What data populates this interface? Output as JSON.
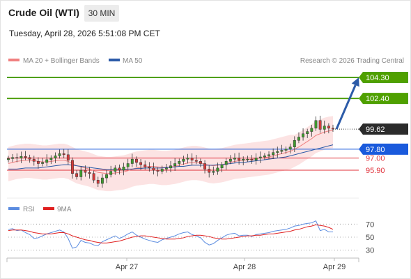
{
  "header": {
    "title": "Crude Oil (WTI)",
    "timeframe": "30 MIN",
    "datetime": "Tuesday, April 28, 2026 5:51:08 PM CET"
  },
  "legend": {
    "ma20_label": "MA 20 + Bollinger Bands",
    "ma50_label": "MA 50",
    "credit": "Research © 2026 Trading Central",
    "rsi_label": "RSI",
    "rsi_ma_label": "9MA"
  },
  "colors": {
    "green": "#4fa000",
    "blue": "#1a5adc",
    "red": "#e0303a",
    "bollinger": "#fbdcdc",
    "ma20": "#f08080",
    "ma50": "#2c5ba8",
    "last_price_bg": "#2b2b2b",
    "arrow": "#2c5ba8",
    "rsi": "#5b8ce0",
    "rsi_ma": "#e02020"
  },
  "chart_data": [
    {
      "type": "candlestick",
      "title": "Crude Oil (WTI)",
      "timeframe": "30 MIN",
      "ylim": [
        93.5,
        105.5
      ],
      "x_ticks": [
        "Apr 27",
        "Apr 28",
        "Apr 29"
      ],
      "last_price": 99.62,
      "levels": [
        {
          "value": 104.3,
          "label": "104.30",
          "kind": "target",
          "color": "#4fa000"
        },
        {
          "value": 102.4,
          "label": "102.40",
          "kind": "target",
          "color": "#4fa000"
        },
        {
          "value": 97.8,
          "label": "97.80",
          "kind": "pivot",
          "color": "#1a5adc"
        },
        {
          "value": 97.0,
          "label": "97.00",
          "kind": "support",
          "color": "#e0303a"
        },
        {
          "value": 95.9,
          "label": "95.90",
          "kind": "support",
          "color": "#e0303a"
        }
      ],
      "arrow": {
        "from": 99.62,
        "to": 104.3,
        "direction": "up"
      },
      "closes": [
        96.95,
        97.05,
        97.0,
        97.15,
        97.05,
        96.9,
        96.7,
        96.5,
        96.6,
        96.85,
        97.0,
        97.2,
        97.4,
        97.3,
        96.8,
        95.6,
        95.3,
        95.9,
        95.7,
        95.6,
        95.0,
        94.7,
        95.2,
        95.5,
        95.8,
        96.1,
        95.9,
        96.2,
        96.5,
        96.9,
        96.6,
        96.4,
        96.2,
        96.1,
        95.9,
        95.8,
        96.0,
        96.1,
        96.3,
        96.5,
        96.7,
        96.9,
        97.0,
        96.8,
        96.7,
        96.5,
        96.0,
        95.7,
        95.8,
        96.1,
        96.4,
        96.7,
        96.9,
        97.0,
        96.8,
        96.9,
        96.9,
        96.8,
        97.0,
        97.1,
        97.2,
        97.3,
        97.5,
        97.6,
        97.7,
        97.8,
        98.0,
        98.6,
        98.9,
        99.2,
        99.4,
        99.7,
        100.4,
        99.6,
        99.9,
        99.7,
        99.62
      ],
      "ma20": [
        96.5,
        96.6,
        96.7,
        96.75,
        96.8,
        96.8,
        96.75,
        96.7,
        96.65,
        96.65,
        96.7,
        96.75,
        96.8,
        96.8,
        96.7,
        96.5,
        96.3,
        96.2,
        96.1,
        96.0,
        95.85,
        95.7,
        95.65,
        95.6,
        95.6,
        95.65,
        95.7,
        95.75,
        95.85,
        96.0,
        96.1,
        96.15,
        96.2,
        96.25,
        96.25,
        96.2,
        96.15,
        96.15,
        96.2,
        96.25,
        96.35,
        96.45,
        96.55,
        96.6,
        96.6,
        96.55,
        96.45,
        96.35,
        96.3,
        96.35,
        96.4,
        96.5,
        96.6,
        96.7,
        96.75,
        96.8,
        96.85,
        96.9,
        96.95,
        97.0,
        97.05,
        97.1,
        97.2,
        97.3,
        97.4,
        97.5,
        97.6,
        97.8,
        98.0,
        98.25,
        98.5,
        98.75,
        99.05,
        99.2,
        99.35,
        99.45,
        99.5
      ],
      "ma50": [
        96.0,
        96.0,
        96.0,
        96.05,
        96.1,
        96.1,
        96.1,
        96.1,
        96.15,
        96.2,
        96.25,
        96.3,
        96.35,
        96.4,
        96.4,
        96.35,
        96.3,
        96.25,
        96.2,
        96.15,
        96.1,
        96.05,
        96.0,
        95.95,
        95.95,
        95.95,
        95.95,
        95.95,
        96.0,
        96.0,
        96.05,
        96.05,
        96.1,
        96.1,
        96.1,
        96.1,
        96.1,
        96.15,
        96.15,
        96.2,
        96.25,
        96.25,
        96.3,
        96.35,
        96.35,
        96.35,
        96.35,
        96.35,
        96.35,
        96.4,
        96.4,
        96.45,
        96.5,
        96.55,
        96.6,
        96.6,
        96.65,
        96.7,
        96.75,
        96.8,
        96.85,
        96.9,
        96.95,
        97.0,
        97.05,
        97.1,
        97.2,
        97.3,
        97.4,
        97.5,
        97.6,
        97.7,
        97.8,
        97.9,
        98.0,
        98.1,
        98.2
      ]
    },
    {
      "type": "line",
      "title": "RSI",
      "ylim": [
        20,
        80
      ],
      "y_ticks": [
        70,
        50,
        30
      ],
      "series": [
        {
          "name": "RSI",
          "color": "#5b8ce0",
          "values": [
            62,
            63,
            60,
            61,
            57,
            54,
            48,
            49,
            52,
            55,
            57,
            59,
            61,
            58,
            48,
            33,
            35,
            45,
            42,
            41,
            38,
            37,
            43,
            46,
            49,
            52,
            48,
            51,
            55,
            58,
            53,
            50,
            47,
            45,
            43,
            42,
            46,
            48,
            50,
            52,
            55,
            57,
            58,
            54,
            52,
            49,
            42,
            38,
            40,
            45,
            49,
            53,
            55,
            56,
            52,
            53,
            53,
            51,
            54,
            55,
            56,
            57,
            59,
            60,
            61,
            62,
            64,
            67,
            68,
            70,
            71,
            72,
            75,
            60,
            62,
            58,
            58
          ]
        },
        {
          "name": "9MA",
          "color": "#e02020",
          "values": [
            60,
            61,
            61,
            61,
            60,
            59,
            57,
            56,
            55,
            55,
            55,
            56,
            57,
            57,
            55,
            52,
            50,
            48,
            46,
            45,
            43,
            42,
            41,
            41,
            42,
            43,
            44,
            46,
            48,
            50,
            51,
            52,
            52,
            51,
            50,
            49,
            48,
            47,
            47,
            47,
            48,
            49,
            51,
            52,
            53,
            53,
            52,
            51,
            49,
            48,
            47,
            47,
            48,
            49,
            50,
            51,
            52,
            52,
            53,
            53,
            54,
            55,
            55,
            56,
            57,
            58,
            59,
            61,
            62,
            64,
            66,
            67,
            69,
            68,
            67,
            65,
            62
          ]
        }
      ]
    }
  ]
}
